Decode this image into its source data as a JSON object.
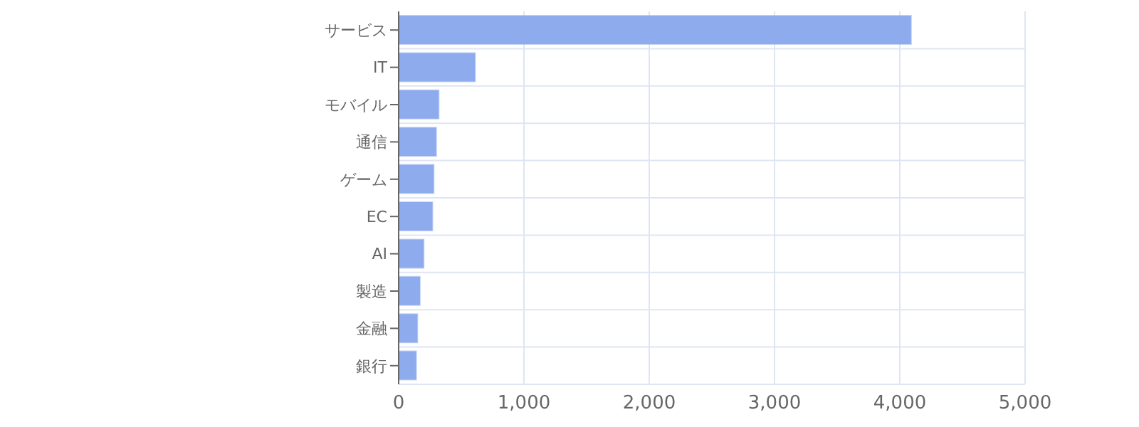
{
  "chart_data": {
    "type": "bar",
    "orientation": "horizontal",
    "categories": [
      "サービス",
      "IT",
      "モバイル",
      "通信",
      "ゲーム",
      "EC",
      "AI",
      "製造",
      "金融",
      "銀行"
    ],
    "values": [
      4090,
      610,
      320,
      300,
      280,
      270,
      200,
      170,
      150,
      140
    ],
    "color": "#8eabee",
    "xlim": [
      0,
      5000
    ],
    "xticks": [
      {
        "value": 0,
        "label": "0"
      },
      {
        "value": 1000,
        "label": "1,000"
      },
      {
        "value": 2000,
        "label": "2,000"
      },
      {
        "value": 3000,
        "label": "3,000"
      },
      {
        "value": 4000,
        "label": "4,000"
      },
      {
        "value": 5000,
        "label": "5,000"
      }
    ],
    "grid": true
  }
}
